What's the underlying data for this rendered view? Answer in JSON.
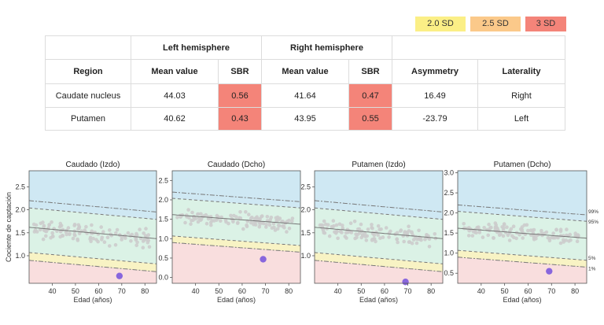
{
  "legend": [
    {
      "label": "2.0 SD",
      "color": "#fbef86"
    },
    {
      "label": "2.5 SD",
      "color": "#fbc98a"
    },
    {
      "label": "3 SD",
      "color": "#f48479"
    }
  ],
  "table": {
    "group_headers": {
      "left": "Left hemisphere",
      "right": "Right hemisphere"
    },
    "col_headers": [
      "Region",
      "Mean value",
      "SBR",
      "Mean value",
      "SBR",
      "Asymmetry",
      "Laterality"
    ],
    "rows": [
      {
        "region": "Caudate nucleus",
        "left_mean": "44.03",
        "left_sbr": "0.56",
        "right_mean": "41.64",
        "right_sbr": "0.47",
        "asymmetry": "16.49",
        "laterality": "Right"
      },
      {
        "region": "Putamen",
        "left_mean": "40.62",
        "left_sbr": "0.43",
        "right_mean": "43.95",
        "right_sbr": "0.55",
        "asymmetry": "-23.79",
        "laterality": "Left"
      }
    ]
  },
  "plots": {
    "ylabel": "Cociente de captación",
    "xlabel": "Edad (años)",
    "percentile_labels": [
      "99%",
      "95%",
      "5%",
      "1%"
    ],
    "colors": {
      "upper": "#cfe8f3",
      "normal": "#dbf2e6",
      "low": "#f9dede",
      "band2": "#f8f3c4",
      "patient": "#8866dd",
      "points": "#cccccc"
    },
    "panels": [
      {
        "title": "Caudado (Izdo)",
        "yticks": [
          "1.0",
          "1.5",
          "2.0",
          "2.5"
        ],
        "xticks": [
          "40",
          "50",
          "60",
          "70",
          "80"
        ],
        "patient": {
          "age": 69,
          "value": 0.56
        }
      },
      {
        "title": "Caudado (Dcho)",
        "yticks": [
          "0.0",
          "0.5",
          "1.0",
          "1.5",
          "2.0",
          "2.5"
        ],
        "xticks": [
          "40",
          "50",
          "60",
          "70",
          "80"
        ],
        "patient": {
          "age": 69,
          "value": 0.47
        }
      },
      {
        "title": "Putamen (Izdo)",
        "yticks": [
          "1.0",
          "1.5",
          "2.0",
          "2.5"
        ],
        "xticks": [
          "40",
          "50",
          "60",
          "70",
          "80"
        ],
        "patient": {
          "age": 69,
          "value": 0.43
        }
      },
      {
        "title": "Putamen (Dcho)",
        "yticks": [
          "0.5",
          "1.0",
          "1.5",
          "2.0",
          "2.5",
          "3.0"
        ],
        "xticks": [
          "40",
          "50",
          "60",
          "70",
          "80"
        ],
        "patient": {
          "age": 69,
          "value": 0.55
        }
      }
    ]
  }
}
